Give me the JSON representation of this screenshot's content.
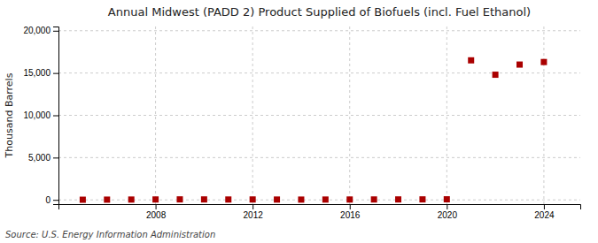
{
  "chart_data": {
    "type": "scatter",
    "title": "Annual Midwest (PADD 2) Product Supplied of Biofuels (incl. Fuel Ethanol)",
    "ylabel": "Thousand Barrels",
    "annotations": [
      "Source: U.S. Energy Information Administration"
    ],
    "x": [
      2005,
      2006,
      2007,
      2008,
      2009,
      2010,
      2011,
      2012,
      2013,
      2014,
      2015,
      2016,
      2017,
      2018,
      2019,
      2020,
      2021,
      2022,
      2023,
      2024
    ],
    "values": [
      20,
      30,
      40,
      50,
      60,
      55,
      45,
      50,
      40,
      35,
      40,
      45,
      50,
      55,
      60,
      70,
      16500,
      14800,
      16000,
      16300
    ],
    "color": "#aa0000",
    "marker": "square",
    "xlim": [
      2004.0,
      2025.5
    ],
    "ylim": [
      -500,
      20500
    ],
    "xticks": [
      2008,
      2012,
      2016,
      2020,
      2024
    ],
    "yticks": [
      0,
      {
        "value": 5000,
        "label": "5,000"
      },
      {
        "value": 10000,
        "label": "10,000"
      },
      {
        "value": 15000,
        "label": "15,000"
      },
      {
        "value": 20000,
        "label": "20,000"
      }
    ],
    "grid": true
  }
}
